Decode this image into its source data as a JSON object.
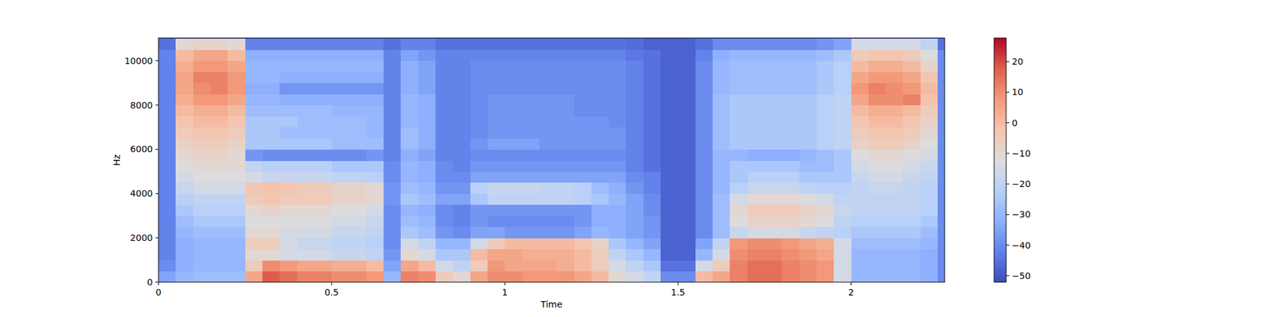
{
  "chart_data": {
    "type": "heatmap",
    "x_label": "Time",
    "y_label": "Hz",
    "color": "coolwarm",
    "x": [
      0.025,
      0.075,
      0.125,
      0.175,
      0.225,
      0.275,
      0.325,
      0.375,
      0.425,
      0.475,
      0.525,
      0.575,
      0.625,
      0.675,
      0.725,
      0.775,
      0.825,
      0.875,
      0.925,
      0.975,
      1.025,
      1.075,
      1.125,
      1.175,
      1.225,
      1.275,
      1.325,
      1.375,
      1.425,
      1.475,
      1.525,
      1.575,
      1.625,
      1.675,
      1.725,
      1.775,
      1.825,
      1.875,
      1.925,
      1.975,
      2.025,
      2.075,
      2.125,
      2.175,
      2.225,
      2.275
    ],
    "y": [
      250,
      750,
      1250,
      1750,
      2250,
      2750,
      3250,
      3750,
      4250,
      4750,
      5250,
      5750,
      6250,
      6750,
      7250,
      7750,
      8250,
      8750,
      9250,
      9750,
      10250,
      10750
    ],
    "cells": [
      [
        -35,
        -30,
        -28,
        -28,
        -28,
        5,
        18,
        15,
        12,
        12,
        10,
        10,
        8,
        -30,
        12,
        10,
        -5,
        -10,
        5,
        10,
        10,
        8,
        8,
        8,
        5,
        0,
        -10,
        -15,
        -20,
        -40,
        -40,
        0,
        5,
        12,
        15,
        15,
        12,
        10,
        8,
        -15,
        -30,
        -30,
        -30,
        -30,
        -32,
        -40
      ],
      [
        -40,
        -32,
        -30,
        -30,
        -30,
        -5,
        10,
        8,
        5,
        5,
        3,
        3,
        0,
        -35,
        5,
        0,
        -15,
        -20,
        -5,
        8,
        5,
        5,
        5,
        3,
        0,
        -5,
        -15,
        -20,
        -25,
        -45,
        -45,
        -15,
        -5,
        12,
        15,
        15,
        12,
        10,
        8,
        -15,
        -30,
        -30,
        -30,
        -30,
        -32,
        -40
      ],
      [
        -42,
        -32,
        -30,
        -30,
        -30,
        -10,
        -10,
        -15,
        -15,
        -15,
        -18,
        -18,
        -20,
        -38,
        -10,
        -15,
        -25,
        -25,
        0,
        5,
        5,
        3,
        3,
        3,
        0,
        -5,
        -20,
        -25,
        -30,
        -48,
        -48,
        -30,
        -15,
        10,
        12,
        12,
        10,
        8,
        5,
        -15,
        -30,
        -30,
        -30,
        -30,
        -32,
        -40
      ],
      [
        -42,
        -32,
        -30,
        -30,
        -30,
        -5,
        -5,
        -15,
        -18,
        -18,
        -20,
        -20,
        -22,
        -40,
        -15,
        -20,
        -30,
        -30,
        -15,
        -5,
        0,
        0,
        0,
        0,
        -3,
        -8,
        -25,
        -30,
        -35,
        -48,
        -48,
        -35,
        -20,
        8,
        10,
        10,
        8,
        5,
        3,
        -15,
        -28,
        -28,
        -28,
        -28,
        -30,
        -40
      ],
      [
        -42,
        -30,
        -28,
        -28,
        -28,
        -10,
        -10,
        -15,
        -15,
        -15,
        -18,
        -18,
        -20,
        -40,
        -25,
        -28,
        -38,
        -40,
        -35,
        -35,
        -38,
        -38,
        -38,
        -38,
        -35,
        -30,
        -32,
        -35,
        -38,
        -48,
        -48,
        -40,
        -28,
        -18,
        -15,
        -15,
        -15,
        -18,
        -20,
        -22,
        -25,
        -25,
        -25,
        -25,
        -28,
        -40
      ],
      [
        -42,
        -28,
        -25,
        -25,
        -25,
        -12,
        -12,
        -12,
        -12,
        -12,
        -15,
        -15,
        -18,
        -40,
        -28,
        -30,
        -40,
        -42,
        -38,
        -40,
        -40,
        -40,
        -40,
        -40,
        -38,
        -32,
        -32,
        -35,
        -38,
        -48,
        -48,
        -40,
        -28,
        -12,
        -8,
        -8,
        -8,
        -10,
        -12,
        -20,
        -22,
        -22,
        -22,
        -22,
        -25,
        -40
      ],
      [
        -42,
        -25,
        -22,
        -22,
        -22,
        -10,
        -8,
        -10,
        -10,
        -10,
        -12,
        -12,
        -15,
        -40,
        -30,
        -32,
        -40,
        -42,
        -38,
        -38,
        -38,
        -38,
        -38,
        -38,
        -38,
        -32,
        -32,
        -35,
        -40,
        -48,
        -48,
        -40,
        -28,
        -10,
        -5,
        -5,
        -5,
        -8,
        -10,
        -18,
        -20,
        -20,
        -20,
        -20,
        -22,
        -40
      ],
      [
        -42,
        -22,
        -20,
        -20,
        -20,
        -5,
        -3,
        -5,
        -5,
        -5,
        -8,
        -8,
        -10,
        -38,
        -25,
        -28,
        -35,
        -35,
        -25,
        -20,
        -20,
        -20,
        -20,
        -20,
        -22,
        -25,
        -30,
        -35,
        -40,
        -48,
        -48,
        -40,
        -28,
        -15,
        -10,
        -10,
        -10,
        -12,
        -15,
        -20,
        -20,
        -20,
        -20,
        -20,
        -22,
        -40
      ],
      [
        -42,
        -18,
        -15,
        -15,
        -15,
        -3,
        -2,
        -3,
        -5,
        -5,
        -8,
        -8,
        -10,
        -38,
        -28,
        -30,
        -38,
        -38,
        -22,
        -18,
        -18,
        -18,
        -20,
        -20,
        -22,
        -28,
        -32,
        -38,
        -42,
        -48,
        -48,
        -40,
        -30,
        -22,
        -18,
        -18,
        -18,
        -20,
        -22,
        -22,
        -20,
        -18,
        -18,
        -20,
        -22,
        -40
      ],
      [
        -42,
        -15,
        -12,
        -12,
        -12,
        -15,
        -18,
        -18,
        -18,
        -18,
        -20,
        -20,
        -22,
        -40,
        -30,
        -32,
        -40,
        -40,
        -35,
        -35,
        -35,
        -35,
        -35,
        -35,
        -35,
        -35,
        -35,
        -40,
        -42,
        -48,
        -48,
        -40,
        -30,
        -25,
        -22,
        -22,
        -22,
        -25,
        -25,
        -25,
        -18,
        -15,
        -15,
        -18,
        -20,
        -40
      ],
      [
        -42,
        -12,
        -10,
        -10,
        -10,
        -20,
        -22,
        -22,
        -22,
        -22,
        -25,
        -25,
        -25,
        -40,
        -30,
        -32,
        -40,
        -42,
        -38,
        -38,
        -38,
        -38,
        -38,
        -38,
        -38,
        -38,
        -38,
        -42,
        -45,
        -48,
        -48,
        -40,
        -30,
        -25,
        -25,
        -25,
        -25,
        -28,
        -28,
        -25,
        -15,
        -12,
        -12,
        -15,
        -18,
        -40
      ],
      [
        -42,
        -10,
        -8,
        -8,
        -10,
        -38,
        -40,
        -40,
        -40,
        -40,
        -40,
        -40,
        -38,
        -42,
        -32,
        -35,
        -42,
        -42,
        -40,
        -40,
        -40,
        -40,
        -40,
        -40,
        -40,
        -40,
        -40,
        -42,
        -45,
        -48,
        -48,
        -40,
        -30,
        -30,
        -32,
        -32,
        -32,
        -30,
        -28,
        -25,
        -12,
        -10,
        -10,
        -12,
        -15,
        -40
      ],
      [
        -42,
        -8,
        -5,
        -5,
        -8,
        -25,
        -25,
        -25,
        -25,
        -25,
        -28,
        -28,
        -28,
        -42,
        -28,
        -32,
        -42,
        -42,
        -38,
        -35,
        -35,
        -35,
        -38,
        -38,
        -38,
        -38,
        -38,
        -42,
        -45,
        -48,
        -48,
        -40,
        -28,
        -25,
        -25,
        -25,
        -25,
        -25,
        -22,
        -20,
        -8,
        -5,
        -5,
        -8,
        -12,
        -40
      ],
      [
        -42,
        -5,
        -3,
        -3,
        -5,
        -25,
        -25,
        -28,
        -28,
        -28,
        -28,
        -28,
        -30,
        -42,
        -28,
        -32,
        -42,
        -42,
        -40,
        -38,
        -38,
        -38,
        -38,
        -38,
        -38,
        -38,
        -38,
        -42,
        -45,
        -48,
        -48,
        -40,
        -28,
        -25,
        -25,
        -25,
        -25,
        -25,
        -22,
        -20,
        -5,
        -3,
        -3,
        -5,
        -10,
        -40
      ],
      [
        -42,
        -3,
        0,
        0,
        -3,
        -25,
        -25,
        -25,
        -28,
        -28,
        -28,
        -28,
        -30,
        -42,
        -30,
        -32,
        -42,
        -42,
        -40,
        -38,
        -38,
        -38,
        -38,
        -38,
        -38,
        -38,
        -40,
        -42,
        -45,
        -48,
        -48,
        -40,
        -28,
        -25,
        -25,
        -25,
        -25,
        -25,
        -22,
        -20,
        -3,
        0,
        0,
        -3,
        -8,
        -40
      ],
      [
        -42,
        0,
        3,
        3,
        0,
        -28,
        -28,
        -28,
        -28,
        -28,
        -30,
        -30,
        -30,
        -42,
        -30,
        -32,
        -42,
        -42,
        -40,
        -38,
        -38,
        -38,
        -38,
        -38,
        -40,
        -40,
        -40,
        -42,
        -45,
        -48,
        -48,
        -40,
        -28,
        -25,
        -25,
        -25,
        -25,
        -25,
        -22,
        -20,
        0,
        3,
        3,
        0,
        -5,
        -40
      ],
      [
        -42,
        3,
        8,
        8,
        5,
        -30,
        -30,
        -32,
        -32,
        -32,
        -32,
        -32,
        -32,
        -42,
        -30,
        -32,
        -42,
        -42,
        -40,
        -38,
        -38,
        -38,
        -38,
        -38,
        -40,
        -40,
        -40,
        -42,
        -45,
        -48,
        -48,
        -40,
        -28,
        -25,
        -25,
        -25,
        -25,
        -25,
        -22,
        -20,
        5,
        10,
        10,
        12,
        -2,
        -40
      ],
      [
        -42,
        5,
        10,
        12,
        8,
        -32,
        -32,
        -38,
        -38,
        -38,
        -38,
        -38,
        -38,
        -42,
        -32,
        -35,
        -42,
        -42,
        -40,
        -40,
        -40,
        -40,
        -40,
        -40,
        -40,
        -40,
        -40,
        -42,
        -45,
        -48,
        -48,
        -40,
        -30,
        -28,
        -28,
        -28,
        -28,
        -28,
        -25,
        -22,
        8,
        12,
        10,
        8,
        0,
        -40
      ],
      [
        -42,
        5,
        12,
        12,
        8,
        -30,
        -30,
        -32,
        -32,
        -32,
        -32,
        -32,
        -32,
        -42,
        -32,
        -35,
        -42,
        -42,
        -40,
        -40,
        -40,
        -40,
        -40,
        -40,
        -40,
        -40,
        -40,
        -42,
        -45,
        -48,
        -48,
        -40,
        -30,
        -28,
        -28,
        -28,
        -28,
        -28,
        -25,
        -22,
        5,
        8,
        8,
        5,
        -3,
        -40
      ],
      [
        -42,
        3,
        8,
        8,
        5,
        -30,
        -30,
        -30,
        -30,
        -30,
        -30,
        -30,
        -30,
        -42,
        -32,
        -35,
        -42,
        -42,
        -40,
        -40,
        -40,
        -40,
        -40,
        -40,
        -40,
        -40,
        -40,
        -42,
        -45,
        -48,
        -48,
        -40,
        -30,
        -28,
        -28,
        -28,
        -28,
        -28,
        -25,
        -22,
        0,
        3,
        3,
        0,
        -8,
        -40
      ],
      [
        -42,
        0,
        5,
        5,
        0,
        -32,
        -32,
        -32,
        -32,
        -32,
        -32,
        -32,
        -32,
        -42,
        -35,
        -38,
        -42,
        -42,
        -42,
        -42,
        -42,
        -42,
        -42,
        -42,
        -42,
        -42,
        -42,
        -44,
        -45,
        -48,
        -48,
        -42,
        -32,
        -30,
        -30,
        -30,
        -30,
        -30,
        -28,
        -25,
        -5,
        -3,
        -3,
        -5,
        -12,
        -40
      ],
      [
        -45,
        -10,
        -8,
        -8,
        -10,
        -42,
        -42,
        -42,
        -42,
        -42,
        -42,
        -42,
        -42,
        -45,
        -42,
        -42,
        -45,
        -45,
        -45,
        -45,
        -45,
        -45,
        -45,
        -45,
        -45,
        -45,
        -45,
        -46,
        -48,
        -48,
        -48,
        -45,
        -40,
        -40,
        -40,
        -40,
        -40,
        -40,
        -38,
        -35,
        -15,
        -15,
        -15,
        -15,
        -20,
        -45
      ]
    ],
    "xlim": [
      0,
      2.27
    ],
    "ylim": [
      0,
      11025
    ],
    "xticks": [
      0,
      0.5,
      1,
      1.5,
      2
    ],
    "yticks": [
      0,
      2000,
      4000,
      6000,
      8000,
      10000
    ],
    "colorbar_range": [
      -52.1,
      27.7
    ],
    "colorbar_ticks": [
      {
        "value": -50,
        "label": "−50"
      },
      {
        "value": -40,
        "label": "−40"
      },
      {
        "value": -30,
        "label": "−30"
      },
      {
        "value": -20,
        "label": "−20"
      },
      {
        "value": -10,
        "label": "−10"
      },
      0,
      10,
      20
    ]
  }
}
